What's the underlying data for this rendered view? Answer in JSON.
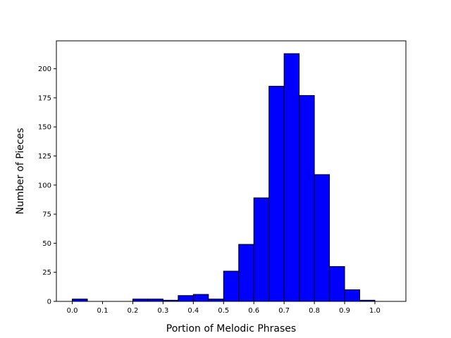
{
  "chart_data": {
    "type": "bar",
    "xlabel": "Portion of Melodic Phrases",
    "ylabel": "Number of Pieces",
    "xlim": [
      -0.0525,
      1.1025
    ],
    "ylim": [
      0,
      224
    ],
    "xticks": [
      0.0,
      0.1,
      0.2,
      0.3,
      0.4,
      0.5,
      0.6,
      0.7,
      0.8,
      0.9,
      1.0
    ],
    "xtick_labels": [
      "0.0",
      "0.1",
      "0.2",
      "0.3",
      "0.4",
      "0.5",
      "0.6",
      "0.7",
      "0.8",
      "0.9",
      "1.0"
    ],
    "yticks": [
      0,
      25,
      50,
      75,
      100,
      125,
      150,
      175,
      200
    ],
    "ytick_labels": [
      "0",
      "25",
      "50",
      "75",
      "100",
      "125",
      "150",
      "175",
      "200"
    ],
    "bin_edges": [
      0.0,
      0.05,
      0.1,
      0.15,
      0.2,
      0.25,
      0.3,
      0.35,
      0.4,
      0.45,
      0.5,
      0.55,
      0.6,
      0.65,
      0.7,
      0.75,
      0.8,
      0.85,
      0.9,
      0.95,
      1.0,
      1.05
    ],
    "values": [
      2,
      0,
      0,
      0,
      2,
      2,
      1,
      5,
      6,
      2,
      26,
      49,
      89,
      185,
      213,
      177,
      109,
      30,
      10,
      1,
      0
    ],
    "bar_color": "#0000ff",
    "edge_color": "#000000",
    "grid": false
  }
}
